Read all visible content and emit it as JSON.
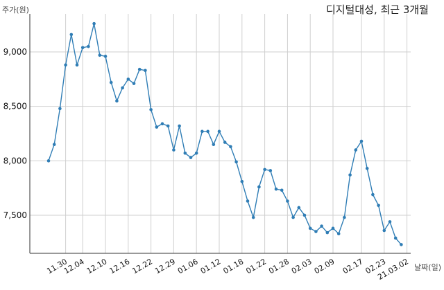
{
  "chart_data": {
    "type": "line",
    "title": "디지털대성, 최근 3개월",
    "xlabel": "날짜(일)",
    "ylabel": "주가(원)",
    "ylim": [
      7150,
      9350
    ],
    "y_ticks": [
      7500,
      8000,
      8500,
      9000
    ],
    "y_tick_labels": [
      "7,500",
      "8,000",
      "8,500",
      "9,000"
    ],
    "x_tick_labels": [
      "11.30",
      "12.04",
      "12.10",
      "12.16",
      "12.22",
      "12.29",
      "01.06",
      "01.12",
      "01.18",
      "01.22",
      "01.28",
      "02.03",
      "02.09",
      "02.17",
      "02.23",
      "21.03.02"
    ],
    "x_tick_indices": [
      3,
      6,
      10,
      14,
      18,
      22,
      26,
      30,
      34,
      38,
      42,
      46,
      50,
      55,
      59,
      63
    ],
    "grid": true,
    "color": "#2f7db5",
    "series": [
      {
        "values": [
          8000,
          8150,
          8480,
          8880,
          9160,
          8880,
          9040,
          9050,
          9260,
          8970,
          8960,
          8720,
          8550,
          8670,
          8750,
          8710,
          8840,
          8830,
          8470,
          8310,
          8340,
          8320,
          8100,
          8320,
          8070,
          8030,
          8070,
          8270,
          8270,
          8150,
          8270,
          8170,
          8130,
          7990,
          7810,
          7630,
          7480,
          7760,
          7920,
          7910,
          7740,
          7730,
          7630,
          7480,
          7570,
          7500,
          7380,
          7350,
          7400,
          7340,
          7380,
          7330,
          7480,
          7870,
          8100,
          8180,
          7930,
          7690,
          7590,
          7360,
          7440,
          7290,
          7230
        ]
      }
    ]
  }
}
